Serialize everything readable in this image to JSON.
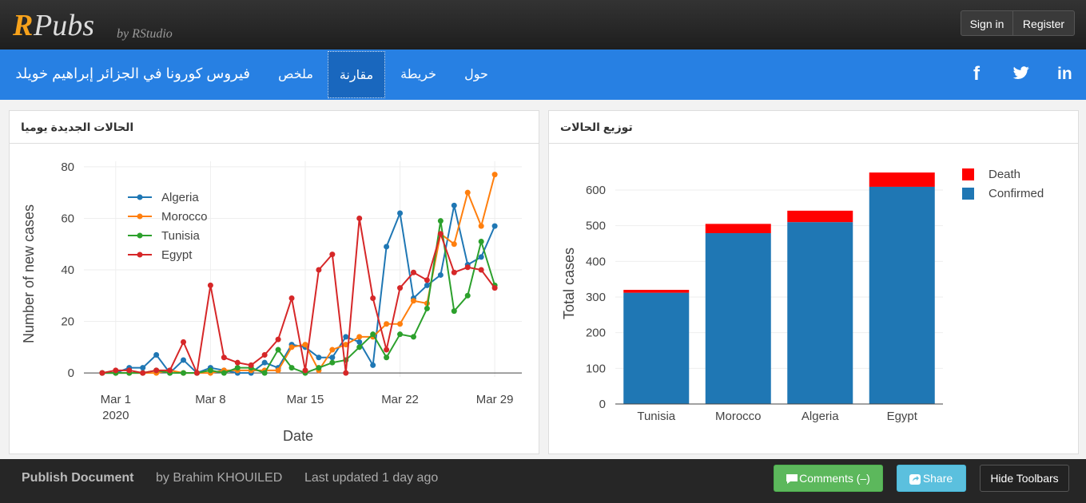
{
  "header": {
    "logo_r": "R",
    "logo_pubs": "Pubs",
    "by": "by RStudio",
    "sign_in": "Sign in",
    "register": "Register"
  },
  "nav": {
    "title": "فيروس كورونا في الجزائر إبراهيم خويلد",
    "items": [
      "ملخص",
      "مقارنة",
      "خريطة",
      "حول"
    ],
    "active_index": 1,
    "social": [
      "f",
      "in"
    ]
  },
  "panels": [
    "الحالات الجديدة يوميا",
    "توزيع الحالات"
  ],
  "chart_data": [
    {
      "type": "line",
      "xlabel": "Date",
      "ylabel": "Number of new cases",
      "x": [
        "2020-02-29",
        "2020-03-01",
        "2020-03-02",
        "2020-03-03",
        "2020-03-04",
        "2020-03-05",
        "2020-03-06",
        "2020-03-07",
        "2020-03-08",
        "2020-03-09",
        "2020-03-10",
        "2020-03-11",
        "2020-03-12",
        "2020-03-13",
        "2020-03-14",
        "2020-03-15",
        "2020-03-16",
        "2020-03-17",
        "2020-03-18",
        "2020-03-19",
        "2020-03-20",
        "2020-03-21",
        "2020-03-22",
        "2020-03-23",
        "2020-03-24",
        "2020-03-25",
        "2020-03-26",
        "2020-03-27",
        "2020-03-28",
        "2020-03-29"
      ],
      "series": [
        {
          "name": "Algeria",
          "color": "#1f77b4",
          "values": [
            0,
            0,
            2,
            2,
            7,
            0,
            5,
            0,
            2,
            1,
            0,
            0,
            4,
            2,
            11,
            10,
            6,
            6,
            14,
            12,
            3,
            49,
            62,
            29,
            34,
            38,
            65,
            42,
            45,
            57
          ]
        },
        {
          "name": "Morocco",
          "color": "#ff7f0e",
          "values": [
            0,
            0,
            0,
            0,
            0,
            1,
            0,
            0,
            0,
            1,
            1,
            1,
            1,
            1,
            10,
            11,
            1,
            9,
            11,
            14,
            14,
            19,
            19,
            28,
            27,
            54,
            50,
            70,
            57,
            77
          ]
        },
        {
          "name": "Tunisia",
          "color": "#2ca02c",
          "values": [
            0,
            0,
            0,
            0,
            1,
            0,
            0,
            0,
            1,
            0,
            2,
            2,
            0,
            9,
            2,
            0,
            2,
            4,
            5,
            10,
            15,
            6,
            15,
            14,
            25,
            59,
            24,
            30,
            51,
            34
          ]
        },
        {
          "name": "Egypt",
          "color": "#d62728",
          "values": [
            0,
            1,
            1,
            0,
            1,
            1,
            12,
            0,
            34,
            6,
            4,
            3,
            7,
            13,
            29,
            1,
            40,
            46,
            0,
            60,
            29,
            9,
            33,
            39,
            36,
            54,
            39,
            41,
            40,
            33
          ]
        }
      ],
      "xlim": [
        "2020-02-27",
        "2020-03-31"
      ],
      "xticks": [
        {
          "value": "2020-03-01",
          "label": "Mar 1\n2020"
        },
        {
          "value": "2020-03-08",
          "label": "Mar 8"
        },
        {
          "value": "2020-03-15",
          "label": "Mar 15"
        },
        {
          "value": "2020-03-22",
          "label": "Mar 22"
        },
        {
          "value": "2020-03-29",
          "label": "Mar 29"
        }
      ],
      "ylim": [
        -4,
        84
      ],
      "yticks": [
        0,
        20,
        40,
        60,
        80
      ],
      "grid": true,
      "zeroline": true,
      "legend": "upper left"
    },
    {
      "type": "bar",
      "stacked": true,
      "ylabel": "Total cases",
      "categories": [
        "Tunisia",
        "Morocco",
        "Algeria",
        "Egypt"
      ],
      "series": [
        {
          "name": "Confirmed",
          "color": "#1f77b4",
          "values": [
            312,
            479,
            510,
            609
          ]
        },
        {
          "name": "Death",
          "color": "#ff0000",
          "values": [
            8,
            26,
            32,
            40
          ]
        }
      ],
      "ylim": [
        0,
        685
      ],
      "yticks": [
        0,
        100,
        200,
        300,
        400,
        500,
        600
      ],
      "grid": true,
      "legend": "upper right"
    }
  ],
  "footer": {
    "publish": "Publish Document",
    "author": "by Brahim KHOUILED",
    "updated": "Last updated 1 day ago",
    "comments": "Comments (–)",
    "share": "Share",
    "hide": "Hide Toolbars"
  }
}
